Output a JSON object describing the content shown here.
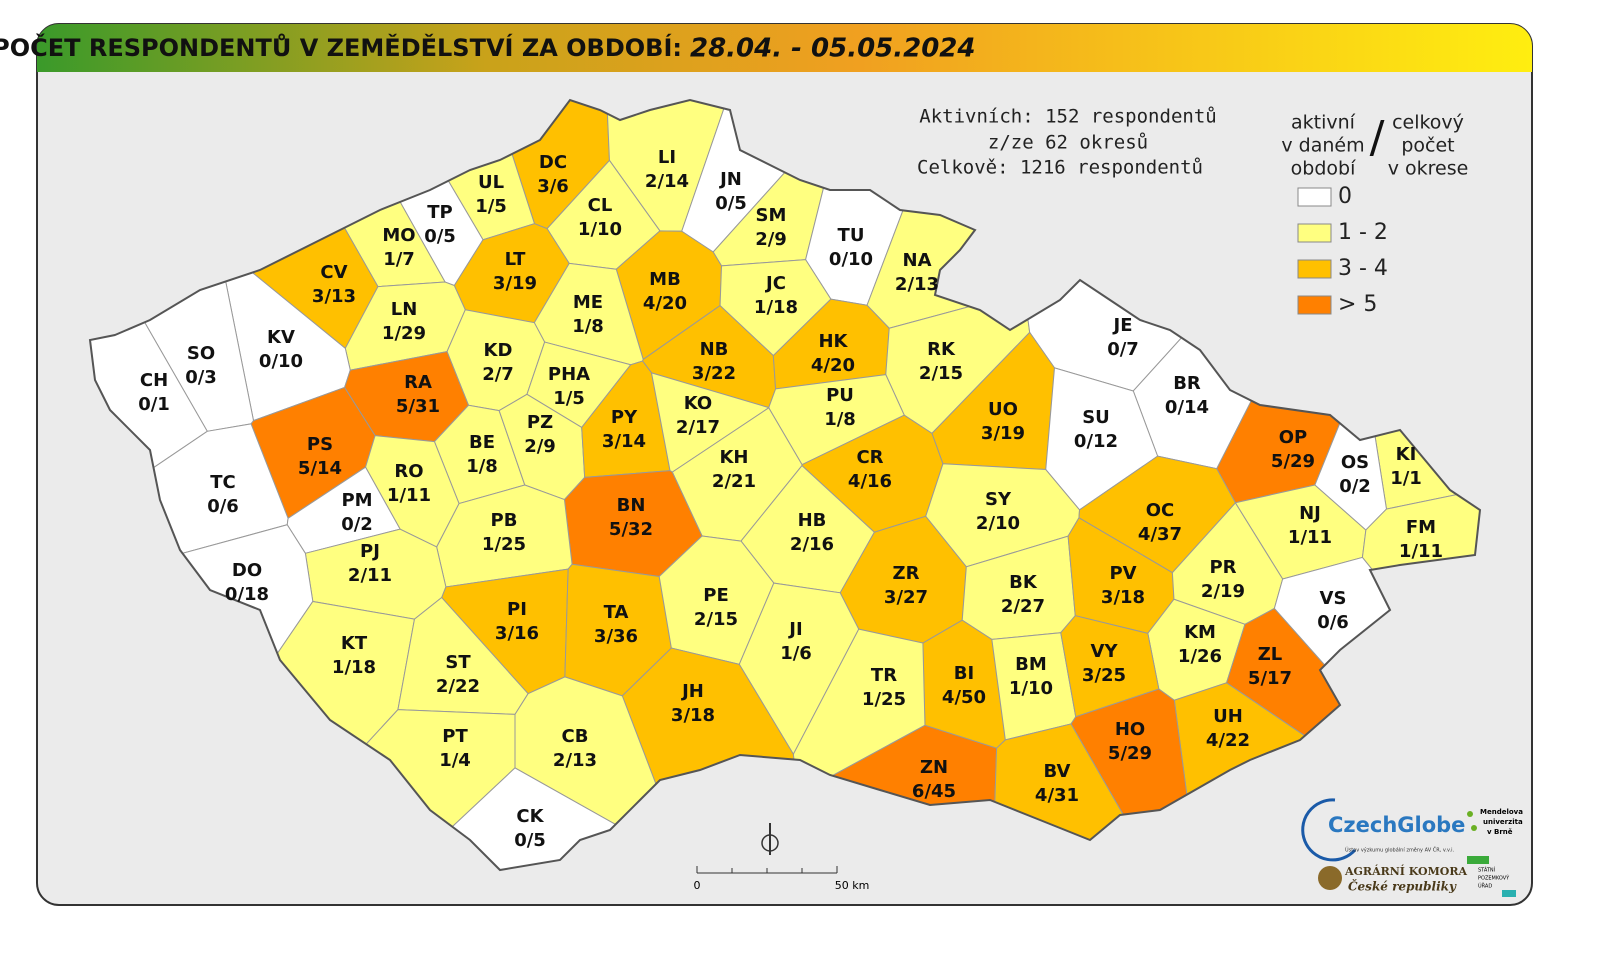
{
  "header": {
    "title": "POČET RESPONDENTŮ V ZEMĚDĚLSTVÍ ZA OBDOBÍ:",
    "period": "28.04. - 05.05.2024"
  },
  "stats": [
    "Aktivních: 152 respondentů",
    "z/ze 62 okresů",
    "Celkově: 1216 respondentů"
  ],
  "legend": {
    "left": [
      "aktivní",
      "v daném",
      "období"
    ],
    "sep": "/",
    "right": [
      "celkový",
      "počet",
      "v okrese"
    ],
    "items": [
      {
        "label": "0",
        "color": "#ffffff"
      },
      {
        "label": "1 - 2",
        "color": "#ffff80"
      },
      {
        "label": "3 - 4",
        "color": "#ffc000"
      },
      {
        "label": "> 5",
        "color": "#ff8000"
      }
    ]
  },
  "scale": {
    "start": "0",
    "end": "50 km"
  },
  "logos": {
    "czechglobe": "CzechGlobe",
    "czechglobe_sub": "Ústav výzkumu globální změny AV ČR, v.v.i.",
    "mendelu": [
      "Mendelova",
      "univerzita",
      "v Brně"
    ],
    "agrarni": [
      "AGRÁRNÍ KOMORA",
      "České republiky"
    ],
    "spu": [
      "STÁTNÍ",
      "POZEMKOVÝ",
      "ÚŘAD"
    ]
  },
  "districts": [
    {
      "code": "DC",
      "label": "3/6",
      "color": "#ffc000"
    },
    {
      "code": "LI",
      "label": "2/14",
      "color": "#ffff80"
    },
    {
      "code": "JN",
      "label": "0/5",
      "color": "#ffffff"
    },
    {
      "code": "UL",
      "label": "1/5",
      "color": "#ffff80"
    },
    {
      "code": "TP",
      "label": "0/5",
      "color": "#ffffff"
    },
    {
      "code": "MO",
      "label": "1/7",
      "color": "#ffff80"
    },
    {
      "code": "CL",
      "label": "1/10",
      "color": "#ffff80"
    },
    {
      "code": "SM",
      "label": "2/9",
      "color": "#ffff80"
    },
    {
      "code": "TU",
      "label": "0/10",
      "color": "#ffffff"
    },
    {
      "code": "NA",
      "label": "2/13",
      "color": "#ffff80"
    },
    {
      "code": "CV",
      "label": "3/13",
      "color": "#ffc000"
    },
    {
      "code": "LT",
      "label": "3/19",
      "color": "#ffc000"
    },
    {
      "code": "MB",
      "label": "4/20",
      "color": "#ffc000"
    },
    {
      "code": "JC",
      "label": "1/18",
      "color": "#ffff80"
    },
    {
      "code": "ME",
      "label": "1/8",
      "color": "#ffff80"
    },
    {
      "code": "LN",
      "label": "1/29",
      "color": "#ffff80"
    },
    {
      "code": "KV",
      "label": "0/10",
      "color": "#ffffff"
    },
    {
      "code": "SO",
      "label": "0/3",
      "color": "#ffffff"
    },
    {
      "code": "CH",
      "label": "0/1",
      "color": "#ffffff"
    },
    {
      "code": "KD",
      "label": "2/7",
      "color": "#ffff80"
    },
    {
      "code": "NB",
      "label": "3/22",
      "color": "#ffc000"
    },
    {
      "code": "HK",
      "label": "4/20",
      "color": "#ffc000"
    },
    {
      "code": "RK",
      "label": "2/15",
      "color": "#ffff80"
    },
    {
      "code": "JE",
      "label": "0/7",
      "color": "#ffffff"
    },
    {
      "code": "RA",
      "label": "5/31",
      "color": "#ff8000"
    },
    {
      "code": "PHA",
      "label": "1/5",
      "color": "#ffff80"
    },
    {
      "code": "PU",
      "label": "1/8",
      "color": "#ffff80"
    },
    {
      "code": "UO",
      "label": "3/19",
      "color": "#ffc000"
    },
    {
      "code": "BR",
      "label": "0/14",
      "color": "#ffffff"
    },
    {
      "code": "SU",
      "label": "0/12",
      "color": "#ffffff"
    },
    {
      "code": "OP",
      "label": "5/29",
      "color": "#ff8000"
    },
    {
      "code": "PS",
      "label": "5/14",
      "color": "#ff8000"
    },
    {
      "code": "BE",
      "label": "1/8",
      "color": "#ffff80"
    },
    {
      "code": "PZ",
      "label": "2/9",
      "color": "#ffff80"
    },
    {
      "code": "PY",
      "label": "3/14",
      "color": "#ffc000"
    },
    {
      "code": "KO",
      "label": "2/17",
      "color": "#ffff80"
    },
    {
      "code": "KH",
      "label": "2/21",
      "color": "#ffff80"
    },
    {
      "code": "CR",
      "label": "4/16",
      "color": "#ffc000"
    },
    {
      "code": "KI",
      "label": "1/1",
      "color": "#ffff80"
    },
    {
      "code": "NJ",
      "label": "1/11",
      "color": "#ffff80"
    },
    {
      "code": "OS",
      "label": "0/2",
      "color": "#ffffff"
    },
    {
      "code": "TC",
      "label": "0/6",
      "color": "#ffffff"
    },
    {
      "code": "RO",
      "label": "1/11",
      "color": "#ffff80"
    },
    {
      "code": "PM",
      "label": "0/2",
      "color": "#ffffff"
    },
    {
      "code": "BN",
      "label": "5/32",
      "color": "#ff8000"
    },
    {
      "code": "SY",
      "label": "2/10",
      "color": "#ffff80"
    },
    {
      "code": "OC",
      "label": "4/37",
      "color": "#ffc000"
    },
    {
      "code": "FM",
      "label": "1/11",
      "color": "#ffff80"
    },
    {
      "code": "HB",
      "label": "2/16",
      "color": "#ffff80"
    },
    {
      "code": "PB",
      "label": "1/25",
      "color": "#ffff80"
    },
    {
      "code": "PJ",
      "label": "2/11",
      "color": "#ffff80"
    },
    {
      "code": "DO",
      "label": "0/18",
      "color": "#ffffff"
    },
    {
      "code": "ZR",
      "label": "3/27",
      "color": "#ffc000"
    },
    {
      "code": "BK",
      "label": "2/27",
      "color": "#ffff80"
    },
    {
      "code": "PV",
      "label": "3/18",
      "color": "#ffc000"
    },
    {
      "code": "PR",
      "label": "2/19",
      "color": "#ffff80"
    },
    {
      "code": "VS",
      "label": "0/6",
      "color": "#ffffff"
    },
    {
      "code": "PI",
      "label": "3/16",
      "color": "#ffc000"
    },
    {
      "code": "TA",
      "label": "3/36",
      "color": "#ffc000"
    },
    {
      "code": "PE",
      "label": "2/15",
      "color": "#ffff80"
    },
    {
      "code": "JI",
      "label": "1/6",
      "color": "#ffff80"
    },
    {
      "code": "KM",
      "label": "1/26",
      "color": "#ffff80"
    },
    {
      "code": "ZL",
      "label": "5/17",
      "color": "#ff8000"
    },
    {
      "code": "KT",
      "label": "1/18",
      "color": "#ffff80"
    },
    {
      "code": "ST",
      "label": "2/22",
      "color": "#ffff80"
    },
    {
      "code": "BI",
      "label": "4/50",
      "color": "#ffc000"
    },
    {
      "code": "BM",
      "label": "1/10",
      "color": "#ffff80"
    },
    {
      "code": "VY",
      "label": "3/25",
      "color": "#ffc000"
    },
    {
      "code": "TR",
      "label": "1/25",
      "color": "#ffff80"
    },
    {
      "code": "JH",
      "label": "3/18",
      "color": "#ffc000"
    },
    {
      "code": "UH",
      "label": "4/22",
      "color": "#ffc000"
    },
    {
      "code": "HO",
      "label": "5/29",
      "color": "#ff8000"
    },
    {
      "code": "PT",
      "label": "1/4",
      "color": "#ffff80"
    },
    {
      "code": "CB",
      "label": "2/13",
      "color": "#ffff80"
    },
    {
      "code": "ZN",
      "label": "6/45",
      "color": "#ff8000"
    },
    {
      "code": "BV",
      "label": "4/31",
      "color": "#ffc000"
    },
    {
      "code": "CK",
      "label": "0/5",
      "color": "#ffffff"
    }
  ]
}
